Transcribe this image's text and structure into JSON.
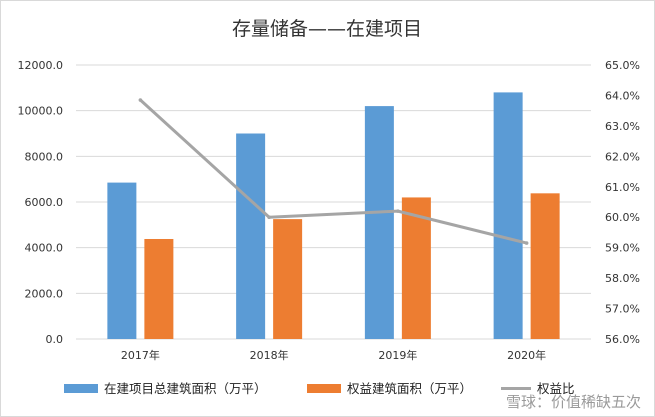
{
  "chart_data": {
    "type": "bar+line",
    "title": "存量储备——在建项目",
    "categories": [
      "2017年",
      "2018年",
      "2019年",
      "2020年"
    ],
    "series": [
      {
        "name": "在建项目总建筑面积（万平）",
        "kind": "bar",
        "axis": "left",
        "color": "#5b9bd5",
        "values": [
          6850,
          9000,
          10200,
          10800
        ]
      },
      {
        "name": "权益建筑面积（万平）",
        "kind": "bar",
        "axis": "left",
        "color": "#ed7d31",
        "values": [
          4380,
          5250,
          6200,
          6380
        ]
      },
      {
        "name": "权益比",
        "kind": "line",
        "axis": "right",
        "color": "#a5a5a5",
        "values": [
          63.85,
          60.0,
          60.2,
          59.15
        ]
      }
    ],
    "left_axis": {
      "min": 0,
      "max": 12000,
      "ticks": [
        "0.0",
        "2000.0",
        "4000.0",
        "6000.0",
        "8000.0",
        "10000.0",
        "12000.0"
      ]
    },
    "right_axis": {
      "min": 56.0,
      "max": 65.0,
      "ticks": [
        "56.0%",
        "57.0%",
        "58.0%",
        "59.0%",
        "60.0%",
        "61.0%",
        "62.0%",
        "63.0%",
        "64.0%",
        "65.0%"
      ]
    },
    "legend_position": "bottom",
    "grid": true
  },
  "watermark": "雪球：价值稀缺五次"
}
